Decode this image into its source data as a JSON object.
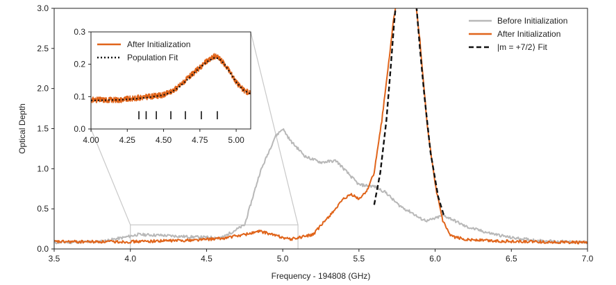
{
  "chart_data": [
    {
      "type": "line",
      "xlabel": "Frequency - 194808 (GHz)",
      "ylabel": "Optical Depth",
      "xlim": [
        3.5,
        7.0
      ],
      "ylim": [
        0.0,
        3.0
      ],
      "xticks": [
        "3.5",
        "4.0",
        "4.5",
        "5.0",
        "5.5",
        "6.0",
        "6.5",
        "7.0"
      ],
      "yticks": [
        "0.0",
        "0.5",
        "1.0",
        "1.5",
        "2.0",
        "2.5",
        "3.0"
      ],
      "legend_position": "top-right",
      "series": [
        {
          "name": "Before Initialization",
          "color": "#b8b8b8",
          "style": "solid",
          "x": [
            3.5,
            3.8,
            3.95,
            4.05,
            4.2,
            4.4,
            4.6,
            4.75,
            4.85,
            4.95,
            5.0,
            5.05,
            5.15,
            5.25,
            5.35,
            5.4,
            5.5,
            5.6,
            5.68,
            5.72,
            5.76,
            5.8,
            5.85,
            5.9,
            5.95,
            6.0,
            6.05,
            6.1,
            6.2,
            6.35,
            6.5,
            6.7,
            7.0
          ],
          "y": [
            0.08,
            0.09,
            0.14,
            0.18,
            0.17,
            0.15,
            0.14,
            0.3,
            0.95,
            1.4,
            1.5,
            1.35,
            1.15,
            1.08,
            1.1,
            1.0,
            0.8,
            0.78,
            0.7,
            0.62,
            0.55,
            0.5,
            0.45,
            0.38,
            0.35,
            0.38,
            0.42,
            0.38,
            0.28,
            0.2,
            0.14,
            0.1,
            0.08
          ]
        },
        {
          "name": "After Initialization",
          "color": "#e0641a",
          "style": "solid",
          "x": [
            3.5,
            3.8,
            4.0,
            4.2,
            4.4,
            4.6,
            4.75,
            4.85,
            4.95,
            5.05,
            5.2,
            5.3,
            5.4,
            5.45,
            5.5,
            5.55,
            5.6,
            5.65,
            5.7,
            5.73,
            5.75,
            5.77,
            5.85,
            5.87,
            5.9,
            5.95,
            6.0,
            6.05,
            6.1,
            6.2,
            6.4,
            6.6,
            7.0
          ],
          "y": [
            0.09,
            0.09,
            0.09,
            0.1,
            0.11,
            0.13,
            0.18,
            0.22,
            0.17,
            0.12,
            0.18,
            0.4,
            0.62,
            0.68,
            0.62,
            0.72,
            0.95,
            1.6,
            2.4,
            2.9,
            3.1,
            3.2,
            3.2,
            3.1,
            2.6,
            1.5,
            0.8,
            0.35,
            0.16,
            0.12,
            0.1,
            0.09,
            0.08
          ]
        },
        {
          "name": "|m = +7/2⟩ Fit",
          "color": "#111111",
          "style": "dashed",
          "x": [
            5.6,
            5.64,
            5.68,
            5.71,
            5.73,
            5.75,
            5.76,
            5.86,
            5.87,
            5.9,
            5.93,
            5.97,
            6.02,
            6.06
          ],
          "y": [
            0.55,
            0.95,
            1.6,
            2.3,
            2.8,
            3.2,
            3.3,
            3.3,
            3.2,
            2.5,
            1.9,
            1.2,
            0.65,
            0.4
          ]
        }
      ]
    },
    {
      "type": "line",
      "xlim": [
        4.0,
        5.1
      ],
      "ylim": [
        0.0,
        0.3
      ],
      "xticks": [
        "4.00",
        "4.25",
        "4.50",
        "4.75",
        "5.00"
      ],
      "yticks": [
        "0.0",
        "0.1",
        "0.2",
        "0.3"
      ],
      "legend_position": "top-left",
      "markers": [
        4.33,
        4.38,
        4.45,
        4.55,
        4.65,
        4.76,
        4.87
      ],
      "series": [
        {
          "name": "After Initialization",
          "color": "#e0641a",
          "style": "solid",
          "x": [
            4.0,
            4.1,
            4.2,
            4.3,
            4.4,
            4.5,
            4.55,
            4.6,
            4.65,
            4.7,
            4.75,
            4.8,
            4.85,
            4.88,
            4.92,
            4.96,
            5.0,
            5.05,
            5.1
          ],
          "y": [
            0.09,
            0.09,
            0.09,
            0.095,
            0.1,
            0.105,
            0.115,
            0.13,
            0.15,
            0.17,
            0.19,
            0.21,
            0.225,
            0.22,
            0.2,
            0.175,
            0.145,
            0.12,
            0.11
          ]
        },
        {
          "name": "Population Fit",
          "color": "#111111",
          "style": "dotted",
          "x": [
            4.0,
            4.1,
            4.2,
            4.3,
            4.4,
            4.5,
            4.55,
            4.6,
            4.65,
            4.7,
            4.75,
            4.8,
            4.85,
            4.88,
            4.92,
            4.96,
            5.0,
            5.05,
            5.1
          ],
          "y": [
            0.088,
            0.089,
            0.09,
            0.093,
            0.098,
            0.105,
            0.113,
            0.127,
            0.147,
            0.168,
            0.19,
            0.208,
            0.22,
            0.218,
            0.2,
            0.173,
            0.145,
            0.12,
            0.108
          ]
        }
      ]
    }
  ]
}
